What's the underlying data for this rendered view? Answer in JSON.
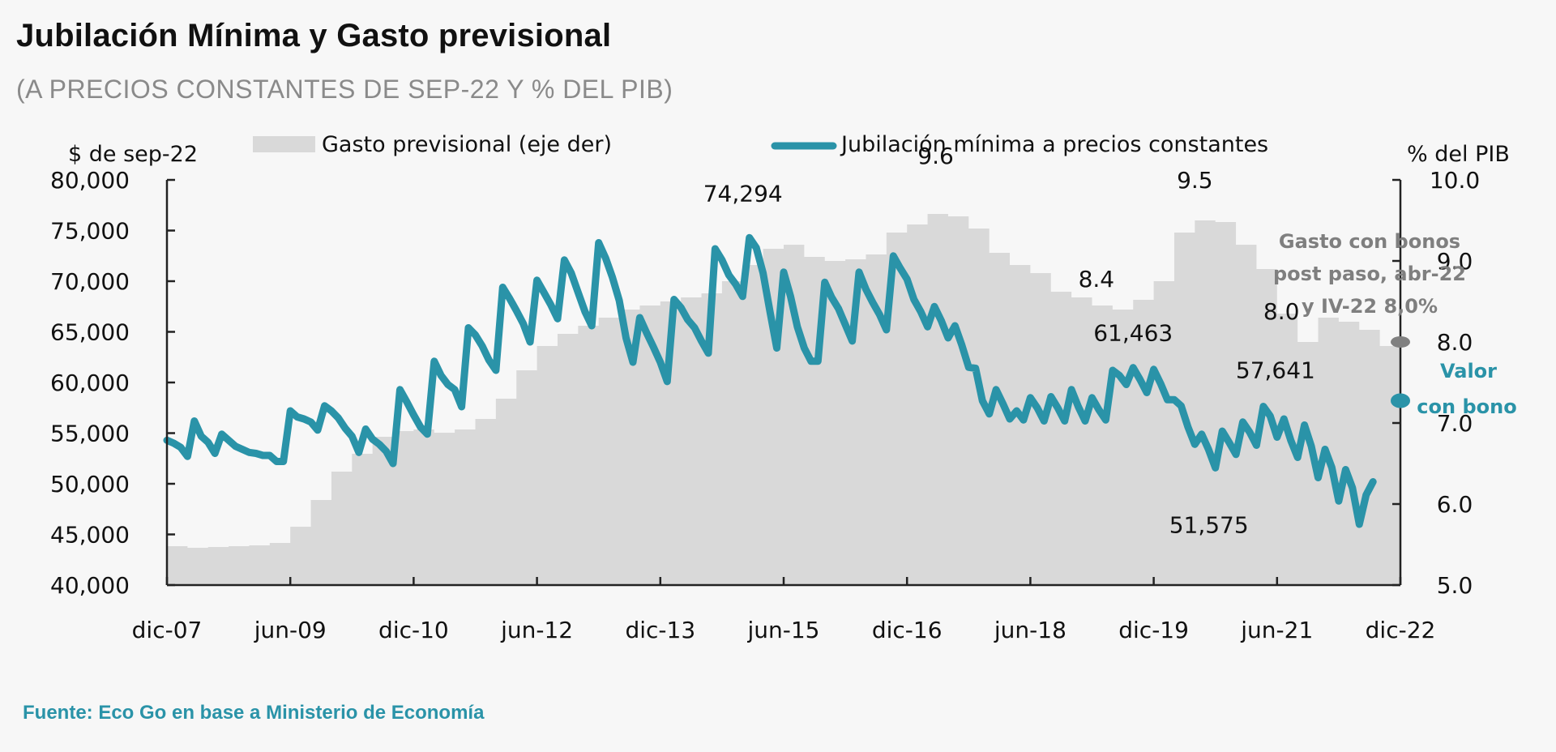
{
  "title": "Jubilación Mínima y Gasto previsional",
  "subtitle": "(A PRECIOS CONSTANTES DE SEP-22 Y % DEL PIB)",
  "source": "Fuente: Eco Go en base a Ministerio de Economía",
  "colors": {
    "line": "#2a93a8",
    "area": "#d9d9d9",
    "background": "#f7f7f7",
    "axis": "#222222",
    "note": "#7f7f7f",
    "note_marker": "#808080"
  },
  "chart_data": {
    "type": "line",
    "title": "Jubilación Mínima y Gasto previsional",
    "subtitle": "(A PRECIOS CONSTANTES DE SEP-22 Y % DEL PIB)",
    "x_start": "dic-07",
    "x_end": "dic-22",
    "x_months_total": 180,
    "x_ticks": [
      {
        "label": "dic-07",
        "month": 0
      },
      {
        "label": "jun-09",
        "month": 18
      },
      {
        "label": "dic-10",
        "month": 36
      },
      {
        "label": "jun-12",
        "month": 54
      },
      {
        "label": "dic-13",
        "month": 72
      },
      {
        "label": "jun-15",
        "month": 90
      },
      {
        "label": "dic-16",
        "month": 108
      },
      {
        "label": "jun-18",
        "month": 126
      },
      {
        "label": "dic-19",
        "month": 144
      },
      {
        "label": "jun-21",
        "month": 162
      },
      {
        "label": "dic-22",
        "month": 180
      }
    ],
    "y_left": {
      "label": "$ de sep-22",
      "lim": [
        40000,
        80000
      ],
      "ticks": [
        "40,000",
        "45,000",
        "50,000",
        "55,000",
        "60,000",
        "65,000",
        "70,000",
        "75,000",
        "80,000"
      ],
      "tick_values": [
        40000,
        45000,
        50000,
        55000,
        60000,
        65000,
        70000,
        75000,
        80000
      ]
    },
    "y_right": {
      "label": "% del PIB",
      "lim": [
        5.0,
        10.0
      ],
      "ticks": [
        "5.0",
        "6.0",
        "7.0",
        "8.0",
        "9.0",
        "10.0"
      ],
      "tick_values": [
        5,
        6,
        7,
        8,
        9,
        10
      ]
    },
    "legend": [
      {
        "name": "Gasto previsional (eje der)",
        "type": "area"
      },
      {
        "name": "Jubilación mínima a precios constantes",
        "type": "line"
      }
    ],
    "legend_position": "top",
    "grid": false,
    "series": [
      {
        "name": "Jubilación mínima a precios constantes",
        "axis": "left",
        "type": "line",
        "points": [
          [
            0,
            54300
          ],
          [
            1,
            54000
          ],
          [
            2,
            53600
          ],
          [
            3,
            52700
          ],
          [
            4,
            56200
          ],
          [
            5,
            54700
          ],
          [
            6,
            54100
          ],
          [
            7,
            53000
          ],
          [
            8,
            54900
          ],
          [
            9,
            54300
          ],
          [
            10,
            53700
          ],
          [
            11,
            53400
          ],
          [
            12,
            53100
          ],
          [
            13,
            53000
          ],
          [
            14,
            52800
          ],
          [
            15,
            52800
          ],
          [
            16,
            52200
          ],
          [
            17,
            52200
          ],
          [
            18,
            57200
          ],
          [
            19,
            56600
          ],
          [
            20,
            56400
          ],
          [
            21,
            56100
          ],
          [
            22,
            55300
          ],
          [
            23,
            57700
          ],
          [
            24,
            57200
          ],
          [
            25,
            56500
          ],
          [
            26,
            55500
          ],
          [
            27,
            54700
          ],
          [
            28,
            53100
          ],
          [
            29,
            55400
          ],
          [
            30,
            54400
          ],
          [
            31,
            53900
          ],
          [
            32,
            53200
          ],
          [
            33,
            52000
          ],
          [
            34,
            59300
          ],
          [
            35,
            58100
          ],
          [
            36,
            56800
          ],
          [
            37,
            55600
          ],
          [
            38,
            54900
          ],
          [
            39,
            62100
          ],
          [
            40,
            60700
          ],
          [
            41,
            59800
          ],
          [
            42,
            59300
          ],
          [
            43,
            57600
          ],
          [
            44,
            65400
          ],
          [
            45,
            64700
          ],
          [
            46,
            63600
          ],
          [
            47,
            62200
          ],
          [
            48,
            61200
          ],
          [
            49,
            69400
          ],
          [
            50,
            68300
          ],
          [
            51,
            67100
          ],
          [
            52,
            65800
          ],
          [
            53,
            64000
          ],
          [
            54,
            70100
          ],
          [
            55,
            68900
          ],
          [
            56,
            67700
          ],
          [
            57,
            66300
          ],
          [
            58,
            72100
          ],
          [
            59,
            70800
          ],
          [
            60,
            68900
          ],
          [
            61,
            67000
          ],
          [
            62,
            65600
          ],
          [
            63,
            73800
          ],
          [
            64,
            72300
          ],
          [
            65,
            70400
          ],
          [
            66,
            68100
          ],
          [
            67,
            64400
          ],
          [
            68,
            62000
          ],
          [
            69,
            66400
          ],
          [
            70,
            64900
          ],
          [
            71,
            63500
          ],
          [
            72,
            62000
          ],
          [
            73,
            60100
          ],
          [
            74,
            68200
          ],
          [
            75,
            67400
          ],
          [
            76,
            66200
          ],
          [
            77,
            65400
          ],
          [
            78,
            64100
          ],
          [
            79,
            62900
          ],
          [
            80,
            73200
          ],
          [
            81,
            72100
          ],
          [
            82,
            70600
          ],
          [
            83,
            69700
          ],
          [
            84,
            68500
          ],
          [
            85,
            74294
          ],
          [
            86,
            73300
          ],
          [
            87,
            70800
          ],
          [
            88,
            67000
          ],
          [
            89,
            63400
          ],
          [
            90,
            70900
          ],
          [
            91,
            68500
          ],
          [
            92,
            65500
          ],
          [
            93,
            63400
          ],
          [
            94,
            62100
          ],
          [
            95,
            62100
          ],
          [
            96,
            69900
          ],
          [
            97,
            68400
          ],
          [
            98,
            67300
          ],
          [
            99,
            65700
          ],
          [
            100,
            64100
          ],
          [
            101,
            70900
          ],
          [
            102,
            69200
          ],
          [
            103,
            67900
          ],
          [
            104,
            66700
          ],
          [
            105,
            65200
          ],
          [
            106,
            72500
          ],
          [
            107,
            71300
          ],
          [
            108,
            70200
          ],
          [
            109,
            68200
          ],
          [
            110,
            67000
          ],
          [
            111,
            65500
          ],
          [
            112,
            67500
          ],
          [
            113,
            66100
          ],
          [
            114,
            64400
          ],
          [
            115,
            65600
          ],
          [
            116,
            63700
          ],
          [
            117,
            61500
          ],
          [
            118,
            61400
          ],
          [
            119,
            58200
          ],
          [
            120,
            56900
          ],
          [
            121,
            59300
          ],
          [
            122,
            57900
          ],
          [
            123,
            56400
          ],
          [
            124,
            57200
          ],
          [
            125,
            56300
          ],
          [
            126,
            58500
          ],
          [
            127,
            57500
          ],
          [
            128,
            56200
          ],
          [
            129,
            58600
          ],
          [
            130,
            57500
          ],
          [
            131,
            56200
          ],
          [
            132,
            59300
          ],
          [
            133,
            57600
          ],
          [
            134,
            56200
          ],
          [
            135,
            58500
          ],
          [
            136,
            57300
          ],
          [
            137,
            56300
          ],
          [
            138,
            61200
          ],
          [
            139,
            60700
          ],
          [
            140,
            59800
          ],
          [
            141,
            61463
          ],
          [
            142,
            60300
          ],
          [
            143,
            59000
          ],
          [
            144,
            61300
          ],
          [
            145,
            59900
          ],
          [
            146,
            58300
          ],
          [
            147,
            58300
          ],
          [
            148,
            57700
          ],
          [
            149,
            55600
          ],
          [
            150,
            53900
          ],
          [
            151,
            54900
          ],
          [
            152,
            53400
          ],
          [
            153,
            51575
          ],
          [
            154,
            55200
          ],
          [
            155,
            54100
          ],
          [
            156,
            52900
          ],
          [
            157,
            56100
          ],
          [
            158,
            55100
          ],
          [
            159,
            53800
          ],
          [
            160,
            57641
          ],
          [
            161,
            56700
          ],
          [
            162,
            54600
          ],
          [
            163,
            56400
          ],
          [
            164,
            54300
          ],
          [
            165,
            52600
          ],
          [
            166,
            55800
          ],
          [
            167,
            53700
          ],
          [
            168,
            50600
          ],
          [
            169,
            53400
          ],
          [
            170,
            51600
          ],
          [
            171,
            48300
          ],
          [
            172,
            51400
          ],
          [
            173,
            49600
          ],
          [
            174,
            46000
          ],
          [
            175,
            48900
          ],
          [
            176,
            50200
          ]
        ]
      },
      {
        "name": "Gasto previsional (eje der)",
        "axis": "right",
        "type": "area",
        "points": [
          [
            0,
            5.48
          ],
          [
            3,
            5.46
          ],
          [
            6,
            5.47
          ],
          [
            9,
            5.48
          ],
          [
            12,
            5.49
          ],
          [
            15,
            5.52
          ],
          [
            18,
            5.72
          ],
          [
            21,
            6.05
          ],
          [
            24,
            6.4
          ],
          [
            27,
            6.62
          ],
          [
            30,
            6.83
          ],
          [
            33,
            6.9
          ],
          [
            36,
            6.92
          ],
          [
            39,
            6.88
          ],
          [
            42,
            6.92
          ],
          [
            45,
            7.05
          ],
          [
            48,
            7.3
          ],
          [
            51,
            7.65
          ],
          [
            54,
            7.95
          ],
          [
            57,
            8.1
          ],
          [
            60,
            8.2
          ],
          [
            63,
            8.3
          ],
          [
            66,
            8.4
          ],
          [
            69,
            8.45
          ],
          [
            72,
            8.5
          ],
          [
            75,
            8.55
          ],
          [
            78,
            8.6
          ],
          [
            81,
            8.75
          ],
          [
            84,
            8.95
          ],
          [
            87,
            9.15
          ],
          [
            90,
            9.2
          ],
          [
            93,
            9.05
          ],
          [
            96,
            9.0
          ],
          [
            99,
            9.02
          ],
          [
            102,
            9.08
          ],
          [
            105,
            9.35
          ],
          [
            108,
            9.45
          ],
          [
            111,
            9.58
          ],
          [
            114,
            9.55
          ],
          [
            117,
            9.4
          ],
          [
            120,
            9.1
          ],
          [
            123,
            8.95
          ],
          [
            126,
            8.85
          ],
          [
            129,
            8.62
          ],
          [
            132,
            8.55
          ],
          [
            135,
            8.45
          ],
          [
            138,
            8.4
          ],
          [
            141,
            8.52
          ],
          [
            144,
            8.75
          ],
          [
            147,
            9.35
          ],
          [
            150,
            9.5
          ],
          [
            153,
            9.48
          ],
          [
            156,
            9.2
          ],
          [
            159,
            8.9
          ],
          [
            162,
            8.35
          ],
          [
            165,
            8.0
          ],
          [
            168,
            8.3
          ],
          [
            171,
            8.25
          ],
          [
            174,
            8.15
          ],
          [
            177,
            7.95
          ],
          [
            180,
            7.75
          ]
        ]
      }
    ],
    "annotations": [
      {
        "text": "74,294",
        "series": "line",
        "month": 85,
        "value": 74294
      },
      {
        "text": "61,463",
        "series": "line",
        "month": 141,
        "value": 61463
      },
      {
        "text": "57,641",
        "series": "line",
        "month": 160,
        "value": 57641
      },
      {
        "text": "51,575",
        "series": "line",
        "month": 153,
        "value": 51575
      },
      {
        "text": "9.6",
        "series": "area",
        "month": 111,
        "value": 9.6
      },
      {
        "text": "9.5",
        "series": "area",
        "month": 150,
        "value": 9.5
      },
      {
        "text": "8.4",
        "series": "area",
        "month": 138,
        "value": 8.4
      },
      {
        "text": "8.0",
        "series": "area",
        "month": 165,
        "value": 8.0
      }
    ],
    "side_notes": {
      "gasto_con_bonos": {
        "lines": [
          "Gasto con bonos",
          "post paso, abr-22",
          "y IV-22 8,0%"
        ],
        "value": 8.0,
        "axis": "right"
      },
      "valor_con_bono": {
        "lines": [
          "Valor",
          "con bono"
        ],
        "value": 58200,
        "axis": "left"
      }
    }
  }
}
